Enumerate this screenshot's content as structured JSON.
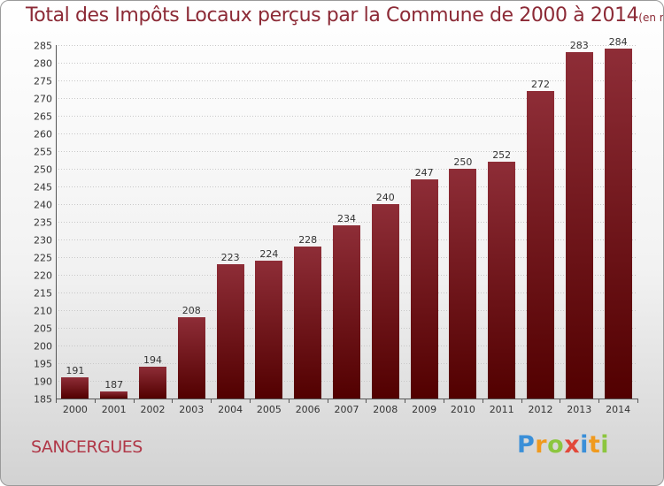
{
  "title": "Total des Impôts Locaux perçus par la Commune de 2000 à 2014",
  "unit": "(en milliers d'€)",
  "commune": "SANCERGUES",
  "logo_text": "Proxiti",
  "colors": {
    "bar_top": "#8e2d37",
    "bar_bottom": "#520000",
    "title": "#8c2a36"
  },
  "chart_data": {
    "type": "bar",
    "title": "Total des Impôts Locaux perçus par la Commune de 2000 à 2014",
    "xlabel": "",
    "ylabel": "(en milliers d'€)",
    "categories": [
      "2000",
      "2001",
      "2002",
      "2003",
      "2004",
      "2005",
      "2006",
      "2007",
      "2008",
      "2009",
      "2010",
      "2011",
      "2012",
      "2013",
      "2014"
    ],
    "values": [
      191,
      187,
      194,
      208,
      223,
      224,
      228,
      234,
      240,
      247,
      250,
      252,
      272,
      283,
      284
    ],
    "ylim": [
      185,
      285
    ],
    "yticks": [
      185,
      190,
      195,
      200,
      205,
      210,
      215,
      220,
      225,
      230,
      235,
      240,
      245,
      250,
      255,
      260,
      265,
      270,
      275,
      280,
      285
    ],
    "grid": true
  }
}
